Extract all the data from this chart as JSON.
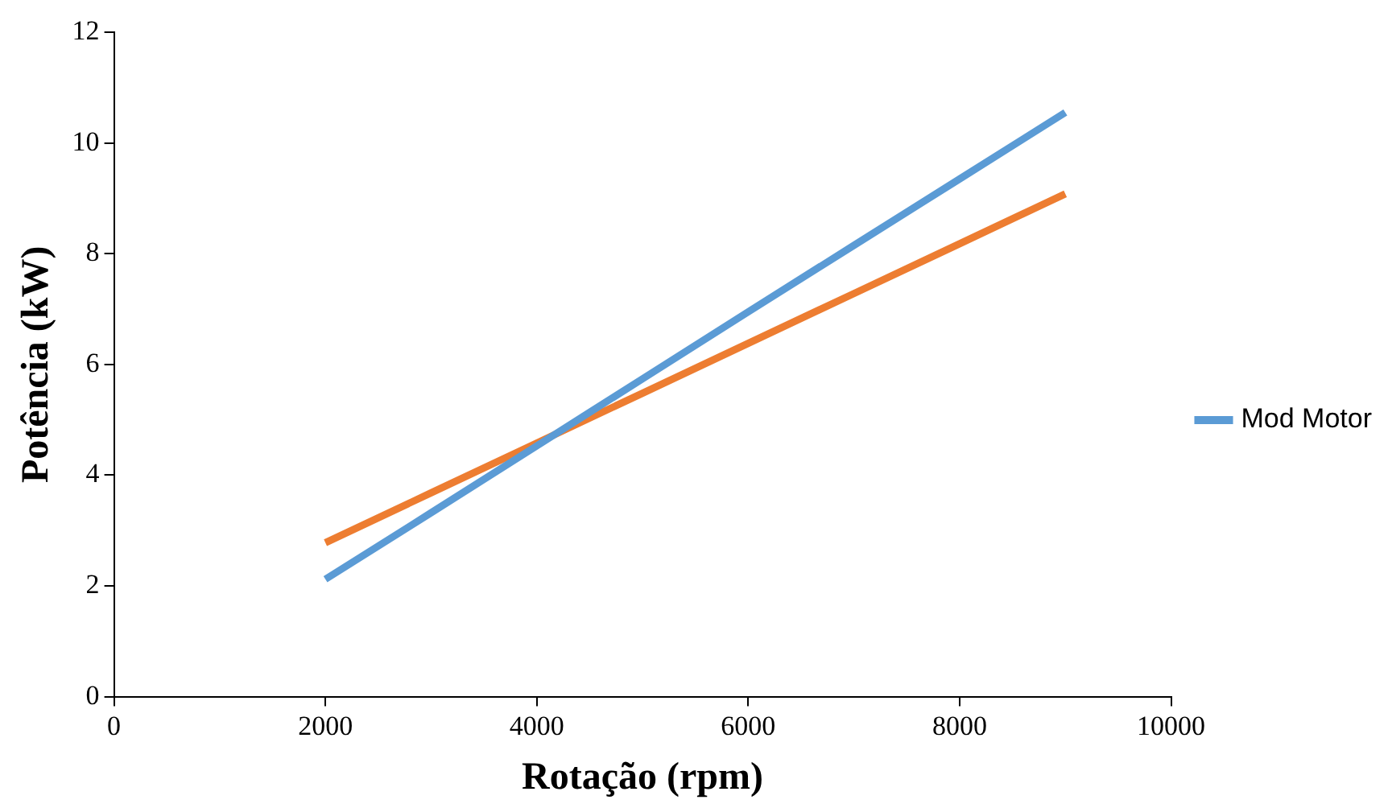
{
  "chart_data": {
    "type": "line",
    "xlabel": "Rotação (rpm)",
    "ylabel": "Potência (kW)",
    "x": [
      2000,
      3000,
      4000,
      5000,
      6000,
      7000,
      8000,
      9000
    ],
    "series": [
      {
        "name": "Mod Motor",
        "color": "#5b9bd5",
        "values": [
          2.12,
          3.32,
          4.53,
          5.74,
          6.95,
          8.15,
          9.35,
          10.55
        ]
      },
      {
        "color": "#ed7d31",
        "values": [
          2.78,
          3.68,
          4.58,
          5.48,
          6.38,
          7.28,
          8.18,
          9.08
        ]
      }
    ],
    "xlim": [
      0,
      10000
    ],
    "xticks": [
      0,
      2000,
      4000,
      6000,
      8000,
      10000
    ],
    "ylim": [
      0,
      12
    ],
    "yticks": [
      0,
      2,
      4,
      6,
      8,
      10,
      12
    ],
    "grid": false,
    "legend": "right",
    "marker": "none",
    "line_style": "solid"
  }
}
